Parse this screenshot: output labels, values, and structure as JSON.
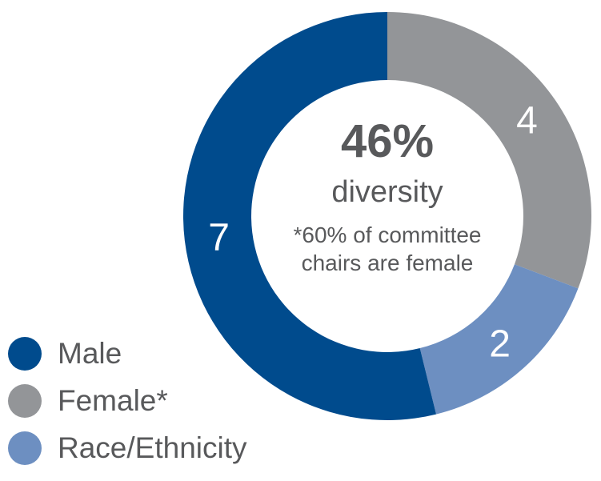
{
  "chart_data": {
    "type": "pie",
    "categories": [
      "Male",
      "Female*",
      "Race/Ethnicity"
    ],
    "values": [
      7,
      4,
      2
    ],
    "colors": [
      "#004b8d",
      "#939598",
      "#6d8fc1"
    ],
    "center": {
      "headline": "46%",
      "subtitle": "diversity",
      "note_line1": "*60% of committee",
      "note_line2": "chairs are female"
    },
    "legend": [
      {
        "label": "Male",
        "color": "#004b8d"
      },
      {
        "label": "Female*",
        "color": "#939598"
      },
      {
        "label": "Race/Ethnicity",
        "color": "#6d8fc1"
      }
    ],
    "legend_position": "bottom-left",
    "start": "top, clockwise: Female*, Race/Ethnicity, Male"
  }
}
